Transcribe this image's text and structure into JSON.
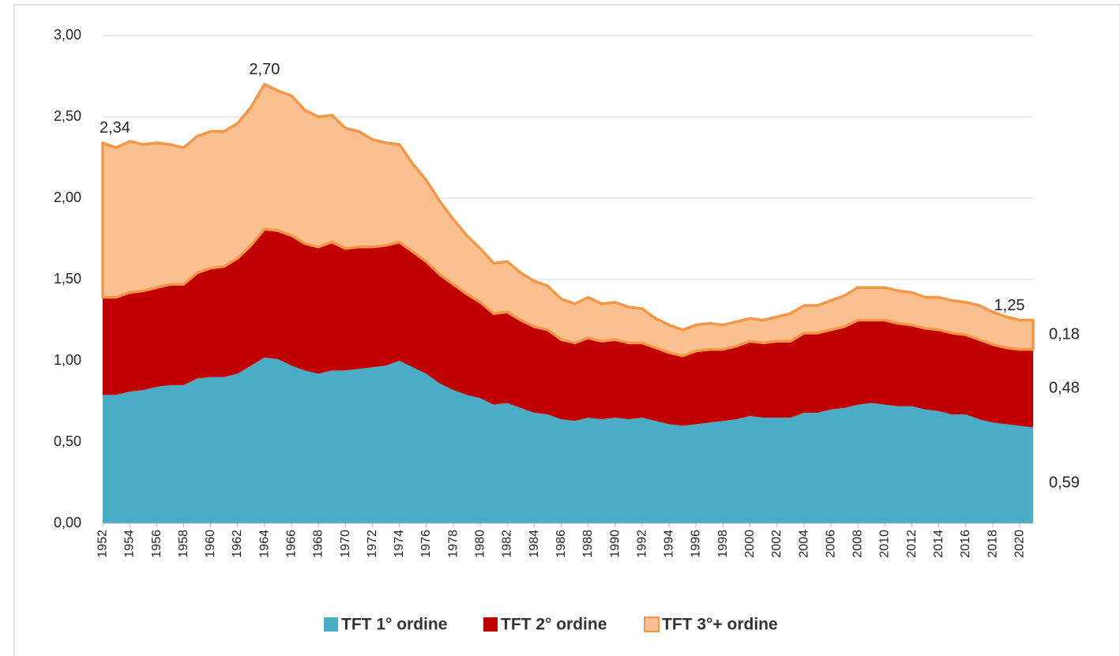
{
  "chart_data": {
    "type": "stacked_area",
    "x": [
      1952,
      1953,
      1954,
      1955,
      1956,
      1957,
      1958,
      1959,
      1960,
      1961,
      1962,
      1963,
      1964,
      1965,
      1966,
      1967,
      1968,
      1969,
      1970,
      1971,
      1972,
      1973,
      1974,
      1975,
      1976,
      1977,
      1978,
      1979,
      1980,
      1981,
      1982,
      1983,
      1984,
      1985,
      1986,
      1987,
      1988,
      1989,
      1990,
      1991,
      1992,
      1993,
      1994,
      1995,
      1996,
      1997,
      1998,
      1999,
      2000,
      2001,
      2002,
      2003,
      2004,
      2005,
      2006,
      2007,
      2008,
      2009,
      2010,
      2011,
      2012,
      2013,
      2014,
      2015,
      2016,
      2017,
      2018,
      2019,
      2020,
      2021
    ],
    "xlim": [
      1952,
      2021
    ],
    "xticks": [
      1952,
      1954,
      1956,
      1958,
      1960,
      1962,
      1964,
      1966,
      1968,
      1970,
      1972,
      1974,
      1976,
      1978,
      1980,
      1982,
      1984,
      1986,
      1988,
      1990,
      1992,
      1994,
      1996,
      1998,
      2000,
      2002,
      2004,
      2006,
      2008,
      2010,
      2012,
      2014,
      2016,
      2018,
      2020
    ],
    "ylim": [
      0,
      3
    ],
    "yticks": [
      {
        "value": 0,
        "label": "0,00"
      },
      {
        "value": 0.5,
        "label": "0,50"
      },
      {
        "value": 1,
        "label": "1,00"
      },
      {
        "value": 1.5,
        "label": "1,50"
      },
      {
        "value": 2,
        "label": "2,00"
      },
      {
        "value": 2.5,
        "label": "2,50"
      },
      {
        "value": 3,
        "label": "3,00"
      }
    ],
    "grid": true,
    "legend": "bottom",
    "series": [
      {
        "name": "TFT 1° ordine",
        "color": "#4bacc6",
        "end_label": "0,59",
        "values": [
          0.79,
          0.79,
          0.81,
          0.82,
          0.84,
          0.85,
          0.85,
          0.89,
          0.9,
          0.9,
          0.92,
          0.97,
          1.02,
          1.01,
          0.97,
          0.94,
          0.92,
          0.94,
          0.94,
          0.95,
          0.96,
          0.97,
          1.0,
          0.96,
          0.92,
          0.86,
          0.82,
          0.79,
          0.77,
          0.73,
          0.74,
          0.71,
          0.68,
          0.67,
          0.64,
          0.63,
          0.65,
          0.64,
          0.65,
          0.64,
          0.65,
          0.63,
          0.61,
          0.6,
          0.61,
          0.62,
          0.63,
          0.64,
          0.66,
          0.65,
          0.65,
          0.65,
          0.68,
          0.68,
          0.7,
          0.71,
          0.73,
          0.74,
          0.73,
          0.72,
          0.72,
          0.7,
          0.69,
          0.67,
          0.67,
          0.64,
          0.62,
          0.61,
          0.6,
          0.59
        ]
      },
      {
        "name": "TFT 2° ordine",
        "color": "#c00000",
        "end_label": "0,48",
        "values": [
          0.6,
          0.6,
          0.61,
          0.61,
          0.61,
          0.62,
          0.62,
          0.65,
          0.67,
          0.68,
          0.71,
          0.74,
          0.79,
          0.79,
          0.8,
          0.78,
          0.78,
          0.79,
          0.75,
          0.75,
          0.74,
          0.74,
          0.73,
          0.71,
          0.69,
          0.67,
          0.65,
          0.62,
          0.59,
          0.56,
          0.56,
          0.54,
          0.53,
          0.52,
          0.49,
          0.48,
          0.49,
          0.48,
          0.48,
          0.47,
          0.46,
          0.45,
          0.44,
          0.43,
          0.45,
          0.45,
          0.44,
          0.45,
          0.46,
          0.46,
          0.47,
          0.47,
          0.49,
          0.49,
          0.49,
          0.5,
          0.52,
          0.51,
          0.52,
          0.51,
          0.5,
          0.5,
          0.5,
          0.5,
          0.49,
          0.49,
          0.48,
          0.47,
          0.47,
          0.48
        ]
      },
      {
        "name": "TFT 3°+ ordine",
        "color": "#fac090",
        "edge_color": "#f79646",
        "end_label": "0,18",
        "values": [
          0.95,
          0.92,
          0.93,
          0.9,
          0.89,
          0.86,
          0.84,
          0.84,
          0.84,
          0.83,
          0.83,
          0.85,
          0.89,
          0.86,
          0.86,
          0.82,
          0.8,
          0.78,
          0.74,
          0.71,
          0.66,
          0.63,
          0.6,
          0.54,
          0.5,
          0.45,
          0.4,
          0.36,
          0.33,
          0.31,
          0.31,
          0.29,
          0.28,
          0.27,
          0.25,
          0.24,
          0.25,
          0.23,
          0.23,
          0.22,
          0.21,
          0.18,
          0.17,
          0.16,
          0.16,
          0.16,
          0.15,
          0.15,
          0.14,
          0.14,
          0.15,
          0.17,
          0.17,
          0.17,
          0.18,
          0.19,
          0.2,
          0.2,
          0.2,
          0.2,
          0.2,
          0.19,
          0.2,
          0.2,
          0.2,
          0.21,
          0.2,
          0.19,
          0.18,
          0.18
        ]
      }
    ],
    "total_labels": [
      {
        "x": 1952,
        "label": "2,34"
      },
      {
        "x": 1964,
        "label": "2,70"
      },
      {
        "x": 2021,
        "label": "1,25"
      }
    ]
  }
}
